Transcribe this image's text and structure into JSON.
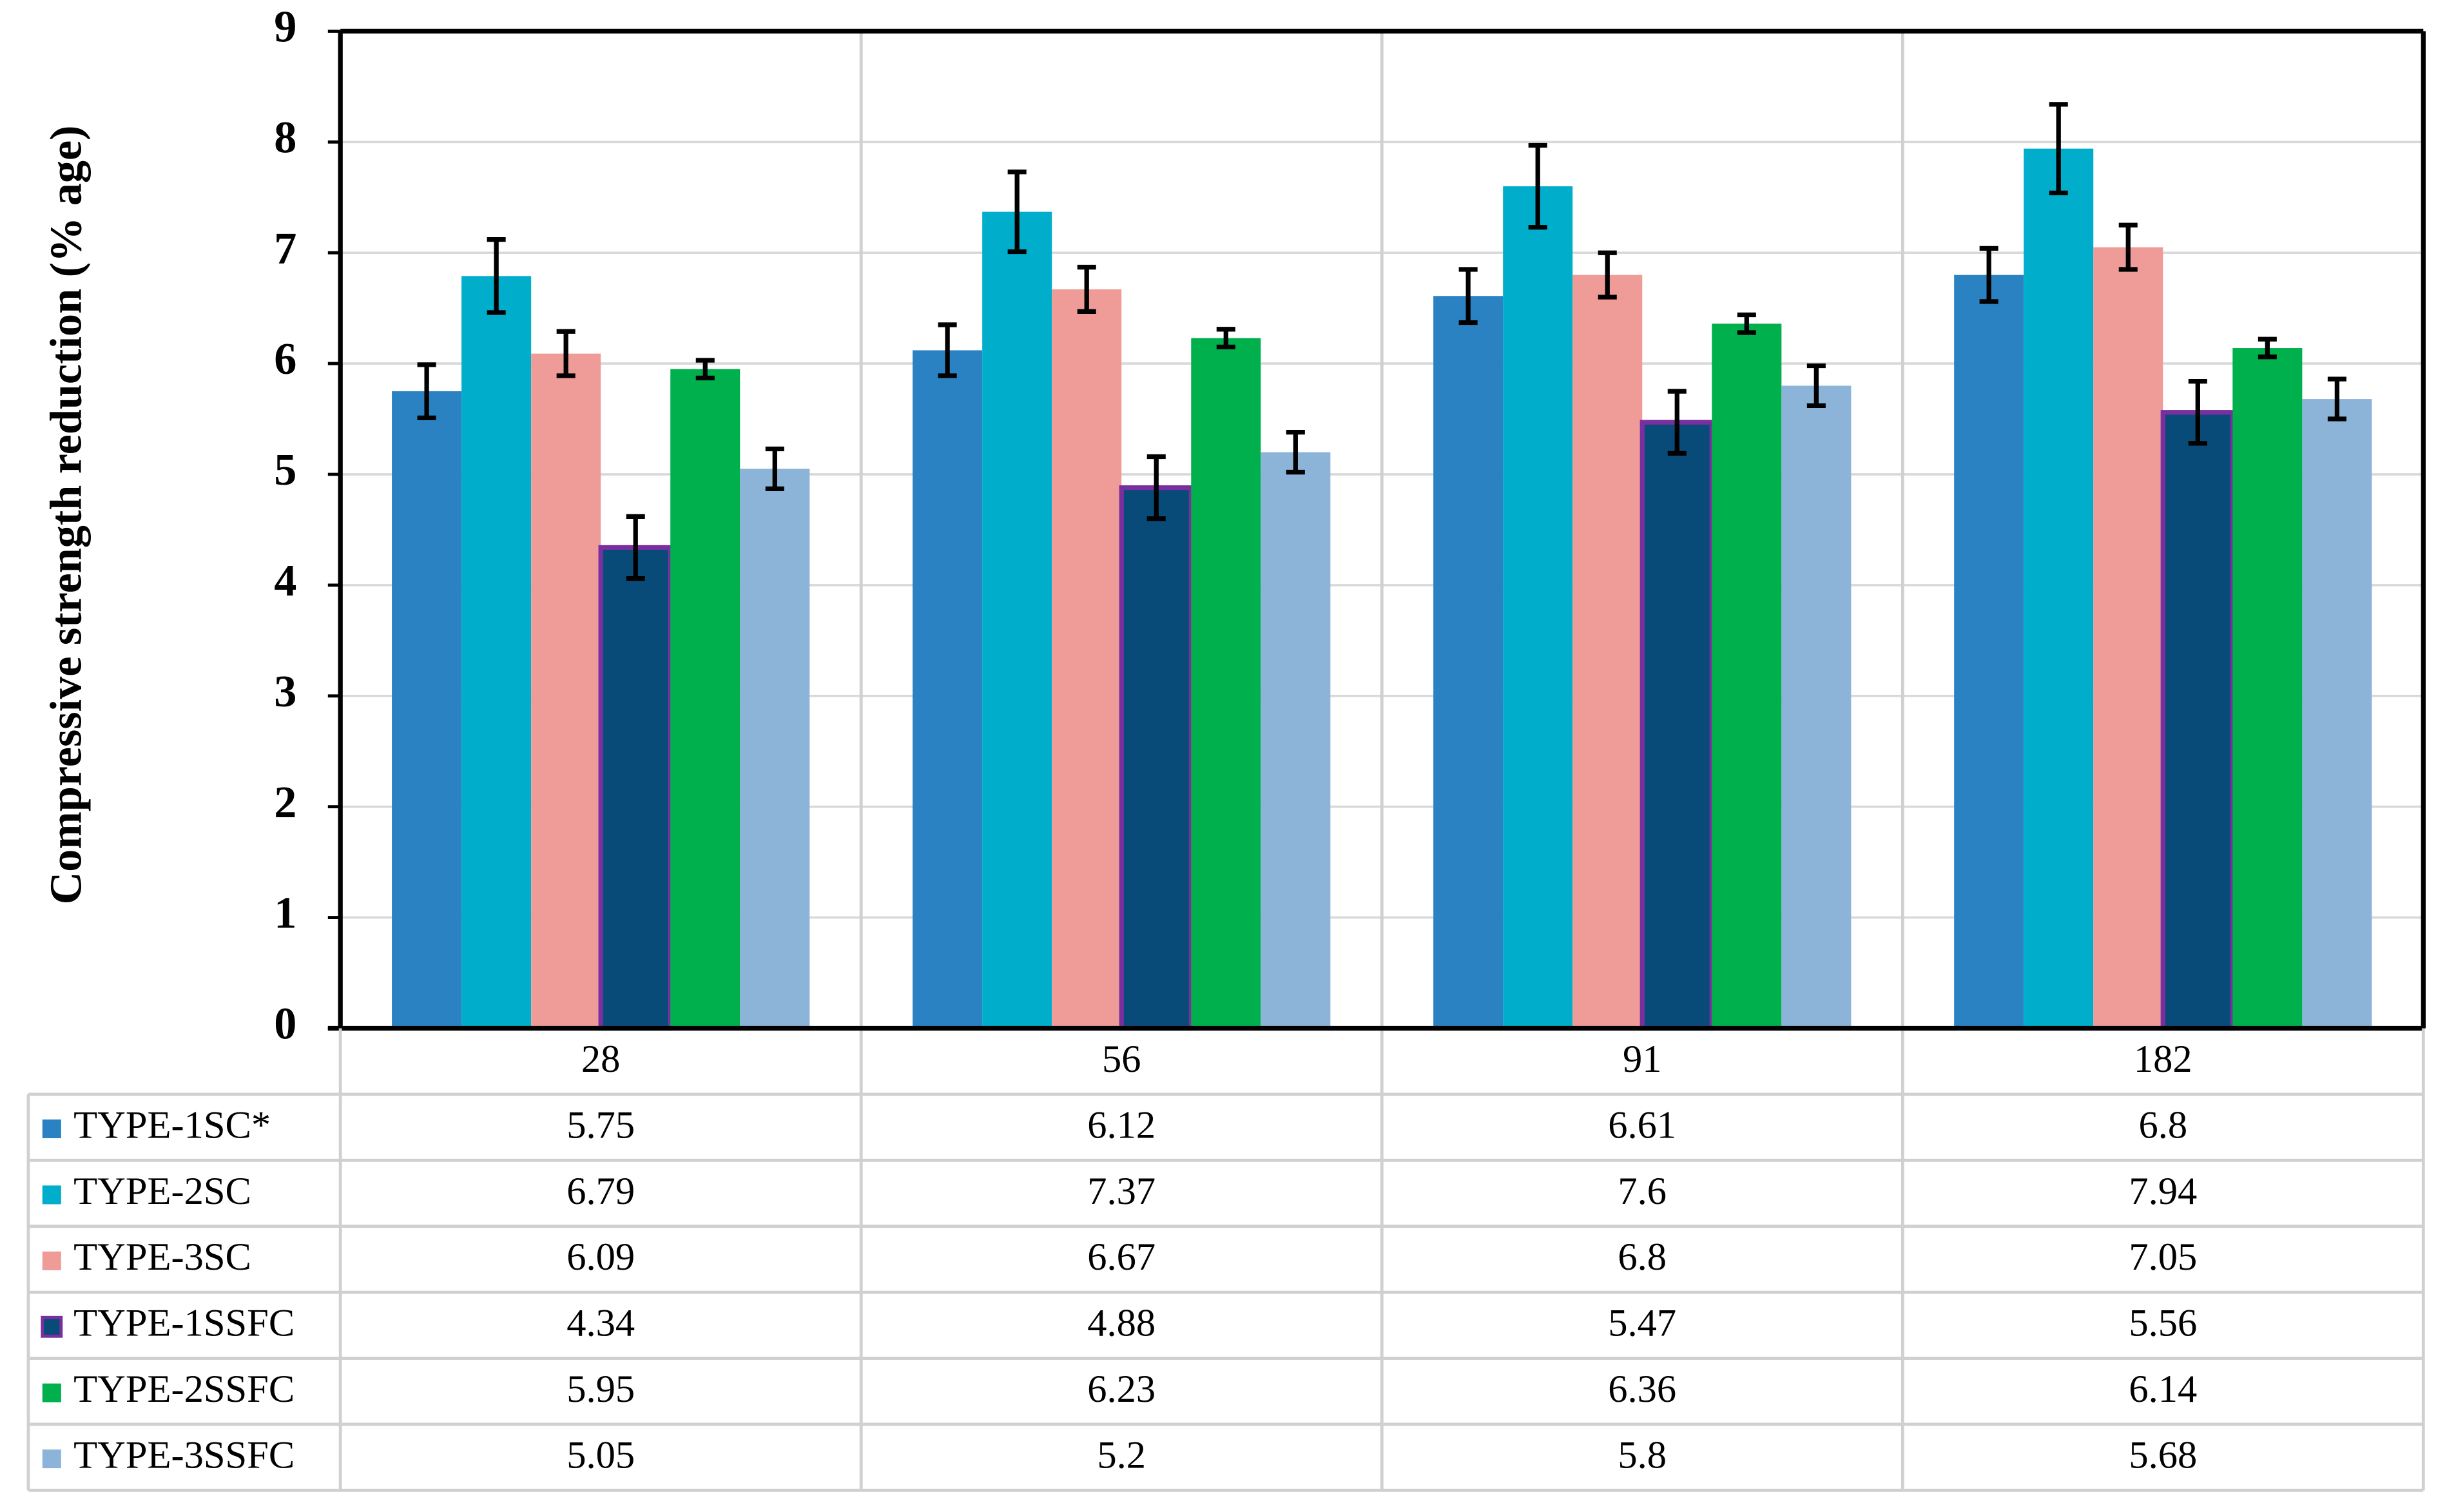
{
  "chart_data": {
    "type": "bar",
    "y_label": "Compressive strength reduction (% age)",
    "categories": [
      "28",
      "56",
      "91",
      "182"
    ],
    "series": [
      {
        "name": "TYPE-1SC*",
        "color": "#2a82c2",
        "values": [
          5.75,
          6.12,
          6.61,
          6.8
        ],
        "errors": [
          0.24,
          0.23,
          0.24,
          0.24
        ]
      },
      {
        "name": "TYPE-2SC",
        "color": "#00aecb",
        "values": [
          6.79,
          7.37,
          7.6,
          7.94
        ],
        "errors": [
          0.33,
          0.36,
          0.37,
          0.4
        ]
      },
      {
        "name": "TYPE-3SC",
        "color": "#ef9c98",
        "values": [
          6.09,
          6.67,
          6.8,
          7.05
        ],
        "errors": [
          0.2,
          0.2,
          0.2,
          0.2
        ]
      },
      {
        "name": "TYPE-1SSFC",
        "color": "#084b78",
        "edge_color": "#7a2fa0",
        "values": [
          4.34,
          4.88,
          5.47,
          5.56
        ],
        "errors": [
          0.28,
          0.28,
          0.28,
          0.28
        ]
      },
      {
        "name": "TYPE-2SSFC",
        "color": "#00b04c",
        "values": [
          5.95,
          6.23,
          6.36,
          6.14
        ],
        "errors": [
          0.08,
          0.08,
          0.08,
          0.08
        ]
      },
      {
        "name": "TYPE-3SSFC",
        "color": "#8cb4d9",
        "values": [
          5.05,
          5.2,
          5.8,
          5.68
        ],
        "errors": [
          0.18,
          0.18,
          0.18,
          0.18
        ]
      }
    ],
    "ylim": [
      0,
      9
    ],
    "yticks": [
      0,
      1,
      2,
      3,
      4,
      5,
      6,
      7,
      8,
      9
    ],
    "grid": true
  }
}
